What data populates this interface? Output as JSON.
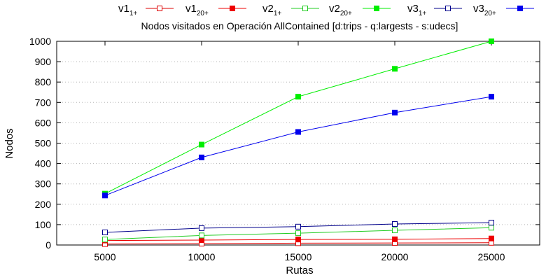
{
  "chart_data": {
    "type": "line",
    "title": "Nodos visitados en Operación AllContained [d:trips - q:largests - s:udecs]",
    "xlabel": "Rutas",
    "ylabel": "Nodos",
    "x": [
      5000,
      10000,
      15000,
      20000,
      25000
    ],
    "xlim": [
      2500,
      27500
    ],
    "ylim": [
      0,
      1000
    ],
    "yticks": [
      0,
      100,
      200,
      300,
      400,
      500,
      600,
      700,
      800,
      900,
      1000
    ],
    "grid": true,
    "legend_position": "top",
    "series": [
      {
        "name": "v1",
        "subscript": "1+",
        "color": "#dd0000",
        "marker": "open-square",
        "values": [
          5,
          7,
          9,
          10,
          11
        ]
      },
      {
        "name": "v1",
        "subscript": "20+",
        "color": "#ee0000",
        "marker": "filled-square",
        "values": [
          22,
          24,
          27,
          28,
          32
        ]
      },
      {
        "name": "v2",
        "subscript": "1+",
        "color": "#22cc22",
        "marker": "open-square",
        "values": [
          27,
          47,
          58,
          72,
          85
        ]
      },
      {
        "name": "v2",
        "subscript": "20+",
        "color": "#00ee00",
        "marker": "filled-square",
        "values": [
          252,
          493,
          728,
          865,
          1000
        ]
      },
      {
        "name": "v3",
        "subscript": "1+",
        "color": "#00008b",
        "marker": "open-square",
        "values": [
          62,
          83,
          90,
          103,
          110
        ]
      },
      {
        "name": "v3",
        "subscript": "20+",
        "color": "#0000ee",
        "marker": "filled-square",
        "values": [
          243,
          430,
          555,
          650,
          728
        ]
      }
    ]
  }
}
